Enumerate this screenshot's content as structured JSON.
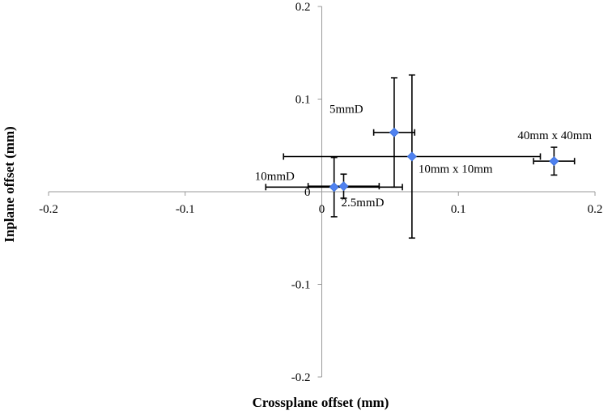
{
  "chart_data": {
    "type": "scatter",
    "title": "",
    "xlabel": "Crossplane offset (mm)",
    "ylabel": "Inplane offset (mm)",
    "xlim": [
      -0.2,
      0.2
    ],
    "ylim": [
      -0.2,
      0.2
    ],
    "x_ticks": [
      -0.2,
      -0.1,
      0,
      0.1,
      0.2
    ],
    "y_ticks": [
      -0.2,
      -0.1,
      0,
      0.1,
      0.2
    ],
    "x_tick_labels": [
      "-0.2",
      "-0.1",
      "0",
      "0.1",
      "0.2"
    ],
    "y_tick_labels": [
      "-0.2",
      "-0.1",
      "0",
      "0.1",
      "0.2"
    ],
    "grid": false,
    "legend": "none",
    "marker_color": "#4f81f0",
    "error_bar_color": "#000000",
    "points": [
      {
        "label": "5mmD",
        "x": 0.053,
        "y": 0.064,
        "xerr": 0.015,
        "yerr": 0.059
      },
      {
        "label": "10mm x 10mm",
        "x": 0.066,
        "y": 0.038,
        "xerr": 0.094,
        "yerr": 0.088
      },
      {
        "label": "40mm x 40mm",
        "x": 0.17,
        "y": 0.033,
        "xerr": 0.015,
        "yerr": 0.015
      },
      {
        "label": "10mmD",
        "x": 0.009,
        "y": 0.005,
        "xerr": 0.05,
        "yerr": 0.032
      },
      {
        "label": "2.5mmD",
        "x": 0.016,
        "y": 0.006,
        "xerr": 0.026,
        "yerr": 0.013
      }
    ]
  }
}
